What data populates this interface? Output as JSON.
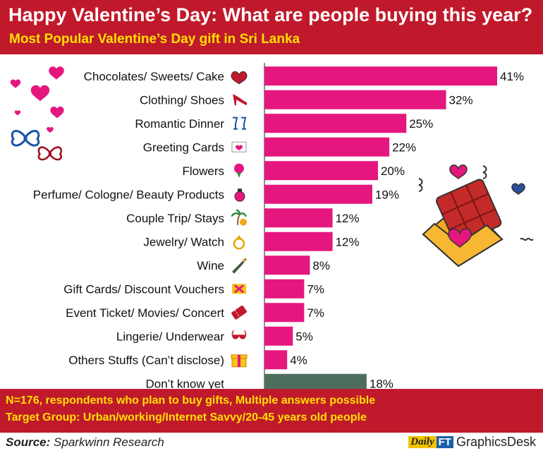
{
  "header": {
    "title": "Happy Valentine’s Day: What are people buying this year?",
    "subtitle": "Most Popular Valentine’s Day gift in Sri Lanka"
  },
  "chart_data": {
    "type": "bar",
    "orientation": "horizontal",
    "categories": [
      "Chocolates/ Sweets/ Cake",
      "Clothing/ Shoes",
      "Romantic Dinner",
      "Greeting Cards",
      "Flowers",
      "Perfume/ Cologne/ Beauty Products",
      "Couple Trip/ Stays",
      "Jewelry/ Watch",
      "Wine",
      "Gift Cards/ Discount Vouchers",
      "Event Ticket/ Movies/ Concert",
      "Lingerie/ Underwear",
      "Others Stuffs (Can’t disclose)",
      "Don’t know yet"
    ],
    "values": [
      41,
      32,
      25,
      22,
      20,
      19,
      12,
      12,
      8,
      7,
      7,
      5,
      4,
      18
    ],
    "value_labels": [
      "41%",
      "32%",
      "25%",
      "22%",
      "20%",
      "19%",
      "12%",
      "12%",
      "8%",
      "7%",
      "7%",
      "5%",
      "4%",
      "18%"
    ],
    "xlim": [
      0,
      41
    ],
    "icons": [
      "heart-chocolate-box-icon",
      "high-heel-shoe-icon",
      "champagne-glasses-icon",
      "greeting-card-icon",
      "flower-bouquet-icon",
      "perfume-bottle-icon",
      "palm-tree-icon",
      "ring-icon",
      "wine-bottle-icon",
      "gift-card-icon",
      "ticket-icon",
      "lingerie-icon",
      "gift-box-icon",
      ""
    ],
    "colors": {
      "bar": "#e5177f",
      "bar_last": "#4e6e5d",
      "axis": "#6b6b6b"
    },
    "grid": false
  },
  "footer": {
    "note1": "N=176, respondents who plan to buy gifts, Multiple answers possible",
    "note2": "Target Group: Urban/working/Internet Savvy/20-45 years old people"
  },
  "source": {
    "label": "Source:",
    "name": "Sparkwinn Research"
  },
  "logo": {
    "daily": "Daily",
    "ft": "FT",
    "desk": "GraphicsDesk"
  },
  "colors": {
    "header_bg": "#c0192b",
    "subtitle": "#ffe000",
    "note_text": "#ffe000"
  }
}
